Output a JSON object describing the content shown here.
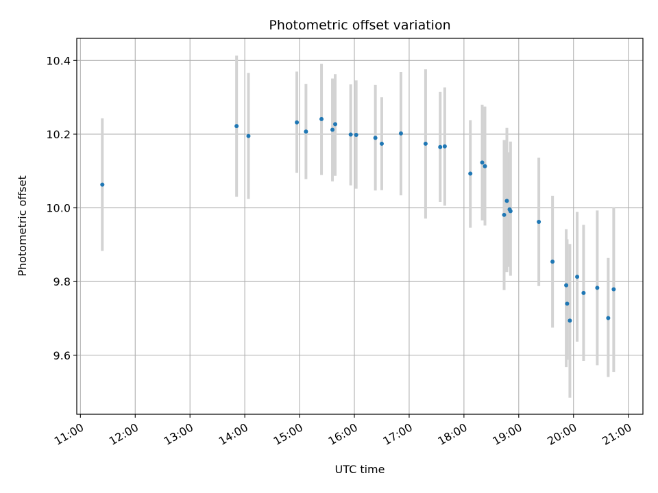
{
  "chart_data": {
    "type": "scatter",
    "title": "Photometric offset variation",
    "xlabel": "UTC time",
    "ylabel": "Photometric offset",
    "x_tick_labels": [
      "11:00",
      "12:00",
      "13:00",
      "14:00",
      "15:00",
      "16:00",
      "17:00",
      "18:00",
      "19:00",
      "20:00",
      "21:00"
    ],
    "y_ticks": [
      9.6,
      9.8,
      10.0,
      10.2,
      10.4
    ],
    "y_tick_labels": [
      "9.6",
      "9.8",
      "10.0",
      "10.2",
      "10.4"
    ],
    "xlim": [
      "10:56",
      "21:16"
    ],
    "ylim": [
      9.44,
      10.46
    ],
    "grid": true,
    "colors": {
      "point": "#1f77b4",
      "errorbar": "#d3d3d3",
      "grid": "#b0b0b0"
    },
    "series": [
      {
        "points": [
          {
            "x": "11:24",
            "y": 10.063,
            "low": 9.883,
            "high": 10.243
          },
          {
            "x": "13:51",
            "y": 10.222,
            "low": 10.03,
            "high": 10.413
          },
          {
            "x": "14:04",
            "y": 10.195,
            "low": 10.024,
            "high": 10.366
          },
          {
            "x": "14:57",
            "y": 10.232,
            "low": 10.095,
            "high": 10.37
          },
          {
            "x": "15:07",
            "y": 10.207,
            "low": 10.078,
            "high": 10.336
          },
          {
            "x": "15:24",
            "y": 10.241,
            "low": 10.089,
            "high": 10.391
          },
          {
            "x": "15:36",
            "y": 10.212,
            "low": 10.072,
            "high": 10.351
          },
          {
            "x": "15:39",
            "y": 10.227,
            "low": 10.087,
            "high": 10.363
          },
          {
            "x": "15:56",
            "y": 10.199,
            "low": 10.061,
            "high": 10.335
          },
          {
            "x": "16:02",
            "y": 10.198,
            "low": 10.052,
            "high": 10.346
          },
          {
            "x": "16:23",
            "y": 10.19,
            "low": 10.047,
            "high": 10.334
          },
          {
            "x": "16:30",
            "y": 10.174,
            "low": 10.048,
            "high": 10.3
          },
          {
            "x": "16:51",
            "y": 10.202,
            "low": 10.034,
            "high": 10.369
          },
          {
            "x": "17:18",
            "y": 10.174,
            "low": 9.971,
            "high": 10.376
          },
          {
            "x": "17:34",
            "y": 10.165,
            "low": 10.016,
            "high": 10.315
          },
          {
            "x": "17:39",
            "y": 10.167,
            "low": 10.006,
            "high": 10.327
          },
          {
            "x": "18:07",
            "y": 10.093,
            "low": 9.946,
            "high": 10.238
          },
          {
            "x": "18:20",
            "y": 10.123,
            "low": 9.966,
            "high": 10.28
          },
          {
            "x": "18:23",
            "y": 10.113,
            "low": 9.952,
            "high": 10.275
          },
          {
            "x": "18:44",
            "y": 9.981,
            "low": 9.777,
            "high": 10.184
          },
          {
            "x": "18:47",
            "y": 10.019,
            "low": 9.826,
            "high": 10.217
          },
          {
            "x": "18:50",
            "y": 9.996,
            "low": 9.84,
            "high": 10.151
          },
          {
            "x": "18:51",
            "y": 9.991,
            "low": 9.816,
            "high": 10.18
          },
          {
            "x": "19:22",
            "y": 9.962,
            "low": 9.788,
            "high": 10.136
          },
          {
            "x": "19:37",
            "y": 9.854,
            "low": 9.675,
            "high": 10.033
          },
          {
            "x": "19:52",
            "y": 9.79,
            "low": 9.568,
            "high": 9.942
          },
          {
            "x": "19:53",
            "y": 9.74,
            "low": 9.588,
            "high": 9.915
          },
          {
            "x": "19:56",
            "y": 9.694,
            "low": 9.485,
            "high": 9.902
          },
          {
            "x": "20:04",
            "y": 9.813,
            "low": 9.637,
            "high": 9.989
          },
          {
            "x": "20:11",
            "y": 9.769,
            "low": 9.585,
            "high": 9.954
          },
          {
            "x": "20:26",
            "y": 9.783,
            "low": 9.573,
            "high": 9.993
          },
          {
            "x": "20:38",
            "y": 9.701,
            "low": 9.541,
            "high": 9.864
          },
          {
            "x": "20:44",
            "y": 9.779,
            "low": 9.555,
            "high": 10.002
          }
        ]
      }
    ]
  }
}
